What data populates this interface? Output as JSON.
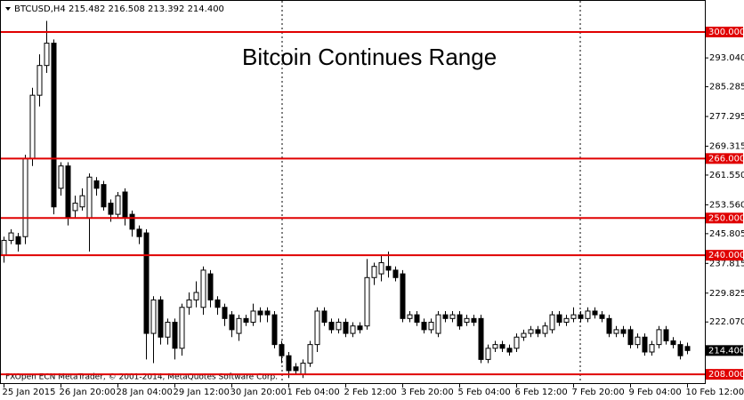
{
  "chart_data": {
    "type": "candlestick",
    "header": "BTCUSD,H4  215.482 216.508 213.392 214.400",
    "title": "Bitcoin Continues Range",
    "footer": "FXOpen ECN MetaTrader, © 2001-2014, MetaQuotes Software Corp.",
    "categories": [
      "25 Jan 2015",
      null,
      null,
      null,
      null,
      null,
      null,
      null,
      "26 Jan 20:00",
      null,
      null,
      null,
      null,
      null,
      null,
      null,
      "28 Jan 04:00",
      null,
      null,
      null,
      null,
      null,
      null,
      null,
      "29 Jan 12:00",
      null,
      null,
      null,
      null,
      null,
      null,
      null,
      "30 Jan 20:00",
      null,
      null,
      null,
      null,
      null,
      null,
      null,
      "1 Feb 04:00",
      null,
      null,
      null,
      null,
      null,
      null,
      null,
      "2 Feb 12:00",
      null,
      null,
      null,
      null,
      null,
      null,
      null,
      "3 Feb 20:00",
      null,
      null,
      null,
      null,
      null,
      null,
      null,
      "5 Feb 04:00",
      null,
      null,
      null,
      null,
      null,
      null,
      null,
      "6 Feb 12:00",
      null,
      null,
      null,
      null,
      null,
      null,
      null,
      "7 Feb 20:00",
      null,
      null,
      null,
      null,
      null,
      null,
      null,
      "9 Feb 04:00",
      null,
      null,
      null,
      null,
      null,
      null,
      null,
      "10 Feb 12:00"
    ],
    "open": [
      240,
      244,
      245,
      245,
      266,
      283,
      291,
      297,
      258,
      264,
      252,
      253,
      250,
      260,
      259,
      254,
      251,
      257,
      251,
      247,
      246,
      219,
      228,
      218,
      222,
      215,
      226,
      228,
      226,
      235,
      228,
      226,
      224,
      219,
      223,
      222,
      225,
      225,
      224,
      216,
      213,
      210,
      208,
      211,
      216,
      225,
      222,
      220,
      222,
      219,
      221,
      221,
      234,
      235,
      237,
      236,
      235,
      223,
      224,
      222,
      220,
      219,
      224,
      223,
      224,
      222,
      223,
      223,
      212,
      215,
      216,
      215,
      215,
      218,
      219,
      220,
      219,
      220,
      224,
      222,
      223,
      224,
      223,
      225,
      224,
      223,
      219,
      220,
      220,
      216,
      218,
      214,
      216,
      220,
      217,
      216,
      215.482
    ],
    "high": [
      245,
      247,
      246,
      267,
      285,
      294,
      303,
      298,
      265,
      265,
      256,
      258,
      262,
      261,
      260,
      255,
      257,
      258,
      252,
      248,
      247,
      229,
      229,
      223,
      223,
      227,
      230,
      233,
      237,
      236,
      229,
      227,
      225,
      224,
      224,
      227,
      226,
      226,
      225,
      217,
      214,
      211,
      212,
      217,
      226,
      226,
      223,
      223,
      223,
      222,
      222,
      239,
      238,
      240,
      241,
      237,
      236,
      225,
      225,
      223,
      223,
      225,
      225,
      225,
      225,
      224,
      224,
      224,
      216,
      217,
      217,
      216,
      219,
      220,
      221,
      221,
      222,
      225,
      225,
      224,
      226,
      225,
      226,
      226,
      225,
      224,
      221,
      221,
      221,
      219,
      219,
      217,
      221,
      221,
      218,
      217,
      216.508
    ],
    "low": [
      238,
      243,
      241,
      243,
      264,
      280,
      289,
      251,
      256,
      248,
      250,
      252,
      241,
      256,
      252,
      249,
      250,
      248,
      245,
      243,
      212,
      211,
      216,
      216,
      212,
      213,
      224,
      226,
      224,
      226,
      224,
      221,
      218,
      217,
      221,
      221,
      222,
      222,
      215,
      211,
      207,
      208,
      207,
      210,
      214,
      221,
      219,
      219,
      218,
      218,
      219,
      220,
      232,
      233,
      234,
      233,
      222,
      222,
      221,
      219,
      219,
      218,
      222,
      222,
      220,
      221,
      221,
      211,
      211,
      214,
      214,
      213,
      214,
      217,
      218,
      218,
      218,
      219,
      221,
      221,
      222,
      222,
      222,
      223,
      222,
      218,
      218,
      218,
      215,
      215,
      213,
      213,
      215,
      216,
      215,
      212,
      213.392
    ],
    "close": [
      244,
      246,
      243,
      266,
      283,
      291,
      297,
      253,
      264,
      250,
      254,
      256,
      261,
      258,
      253,
      251,
      256,
      250,
      247,
      245,
      219,
      228,
      218,
      222,
      215,
      226,
      228,
      230,
      236,
      228,
      226,
      223,
      220,
      223,
      222,
      225,
      224,
      224,
      216,
      213,
      209,
      209,
      211,
      216,
      225,
      222,
      220,
      222,
      219,
      221,
      220,
      234,
      237,
      238,
      236,
      234,
      223,
      224,
      222,
      220,
      222,
      224,
      223,
      224,
      221,
      223,
      222,
      212,
      215,
      216,
      215,
      214,
      218,
      219,
      220,
      219,
      221,
      224,
      222,
      223,
      224,
      223,
      225,
      224,
      223,
      219,
      220,
      219,
      216,
      218,
      214,
      216,
      220,
      217,
      216,
      213,
      214.4
    ],
    "ylim": [
      205.4,
      308.6
    ],
    "yticks": [
      {
        "value": 293.04,
        "label": "293.040"
      },
      {
        "value": 285.285,
        "label": "285.285"
      },
      {
        "value": 277.295,
        "label": "277.295"
      },
      {
        "value": 269.315,
        "label": "269.315"
      },
      {
        "value": 261.55,
        "label": "261.550"
      },
      {
        "value": 253.56,
        "label": "253.560"
      },
      {
        "value": 245.805,
        "label": "245.805"
      },
      {
        "value": 237.815,
        "label": "237.815"
      },
      {
        "value": 229.825,
        "label": "229.825"
      },
      {
        "value": 222.07,
        "label": "222.070"
      }
    ],
    "levels": [
      {
        "value": 300,
        "label": "300.000"
      },
      {
        "value": 266,
        "label": "266.000"
      },
      {
        "value": 250,
        "label": "250.000"
      },
      {
        "value": 240,
        "label": "240.000"
      },
      {
        "value": 208,
        "label": "208.000"
      }
    ],
    "level_color": "#e00000",
    "price_label": {
      "value": 214.4,
      "label": "214.400"
    },
    "up_color": "#ffffff",
    "down_color": "#000000"
  }
}
